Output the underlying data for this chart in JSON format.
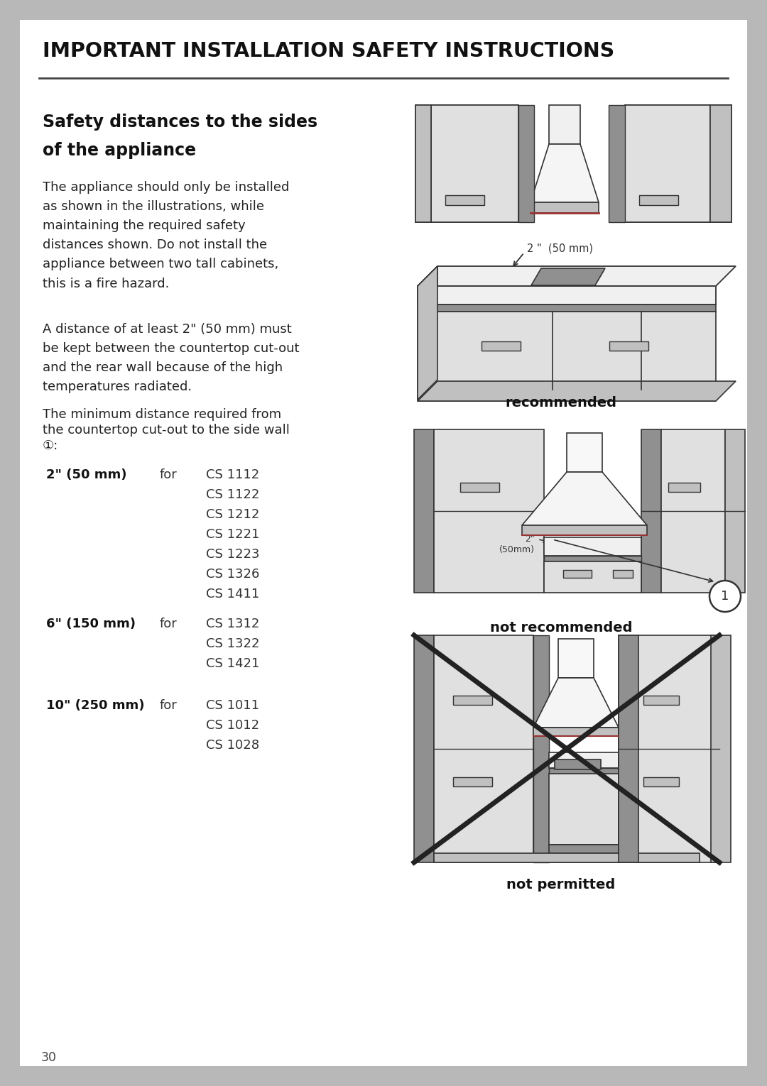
{
  "page_bg": "#b8b8b8",
  "content_bg": "#ffffff",
  "header_text": "IMPORTANT INSTALLATION SAFETY INSTRUCTIONS",
  "section_title_line1": "Safety distances to the sides",
  "section_title_line2": "of the appliance",
  "body_text1": "The appliance should only be installed\nas shown in the illustrations, while\nmaintaining the required safety\ndistances shown. Do not install the\nappliance between two tall cabinets,\nthis is a fire hazard.",
  "body_text2": "A distance of at least 2\" (50 mm) must\nbe kept between the countertop cut-out\nand the rear wall because of the high\ntemperatures radiated.",
  "body_text3_line1": "The minimum distance required from",
  "body_text3_line2": "the countertop cut-out to the side wall",
  "body_text3_line3": "①:",
  "label1_bold": "2\" (50 mm)",
  "label1_for": "for",
  "label1_models": [
    "CS 1112",
    "CS 1122",
    "CS 1212",
    "CS 1221",
    "CS 1223",
    "CS 1326",
    "CS 1411"
  ],
  "label2_bold": "6\" (150 mm)",
  "label2_for": "for",
  "label2_models": [
    "CS 1312",
    "CS 1322",
    "CS 1421"
  ],
  "label3_bold": "10\" (250 mm)",
  "label3_for": "for",
  "label3_models": [
    "CS 1011",
    "CS 1012",
    "CS 1028"
  ],
  "caption_recommended": "recommended",
  "caption_not_recommended": "not recommended",
  "caption_not_permitted": "not permitted",
  "page_number": "30",
  "gray_light": "#e0e0e0",
  "gray_mid": "#c0c0c0",
  "gray_dark": "#909090",
  "gray_darker": "#606060",
  "line_color": "#333333",
  "dark_accent": "#555555"
}
